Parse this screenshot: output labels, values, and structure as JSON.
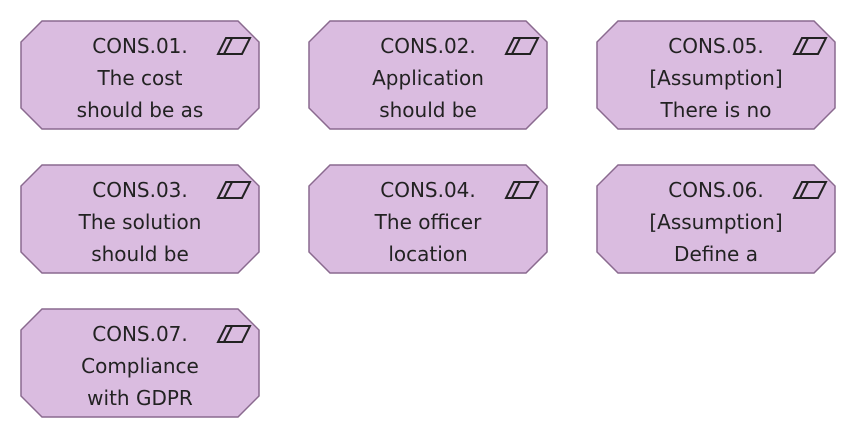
{
  "colors": {
    "fill": "#dabce0",
    "stroke": "#8a6a8f",
    "text": "#222222"
  },
  "icon": "constraint-parallelogram-icon",
  "nodes": [
    {
      "id": "CONS.01.",
      "line2": "The cost",
      "line3": "should be as"
    },
    {
      "id": "CONS.02.",
      "line2": "Application",
      "line3": "should be"
    },
    {
      "id": "CONS.05.",
      "line2": "[Assumption]",
      "line3": "There is no"
    },
    {
      "id": "CONS.03.",
      "line2": "The solution",
      "line3": "should be"
    },
    {
      "id": "CONS.04.",
      "line2": "The officer",
      "line3": "location"
    },
    {
      "id": "CONS.06.",
      "line2": "[Assumption]",
      "line3": "Define a"
    },
    {
      "id": "CONS.07.",
      "line2": "Compliance",
      "line3": "with GDPR"
    }
  ]
}
